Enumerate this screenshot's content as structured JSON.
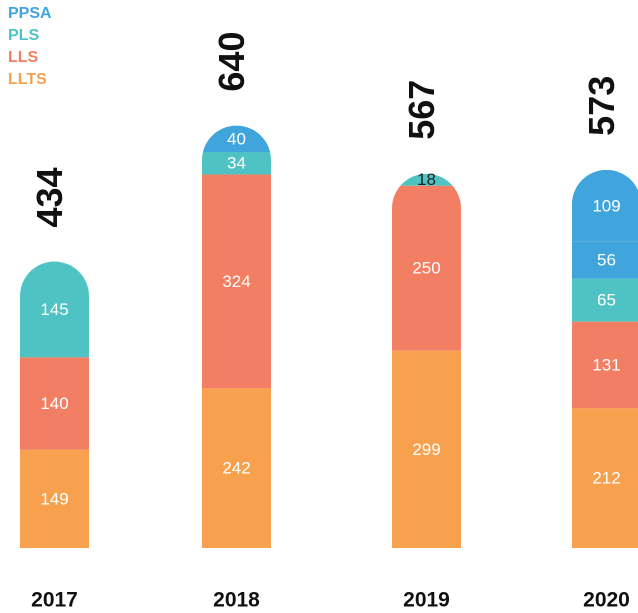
{
  "chart_data": {
    "type": "stacked_bar",
    "categories": [
      "2017",
      "2018",
      "2019",
      "2020"
    ],
    "series": [
      {
        "name": "LLTS",
        "color": "#f7a14f",
        "values": [
          149,
          242,
          299,
          212
        ]
      },
      {
        "name": "LLS",
        "color": "#f27f63",
        "values": [
          140,
          324,
          250,
          131
        ]
      },
      {
        "name": "PLS",
        "color": "#4fc3c4",
        "values": [
          145,
          34,
          18,
          65
        ]
      },
      {
        "color": "#3fa5dc",
        "values": [
          null,
          null,
          null,
          56
        ]
      },
      {
        "name": "PPSA",
        "color": "#3fa5dc",
        "values": [
          null,
          40,
          null,
          109
        ]
      }
    ],
    "totals": [
      434,
      640,
      567,
      573
    ],
    "legend": "top-left"
  }
}
